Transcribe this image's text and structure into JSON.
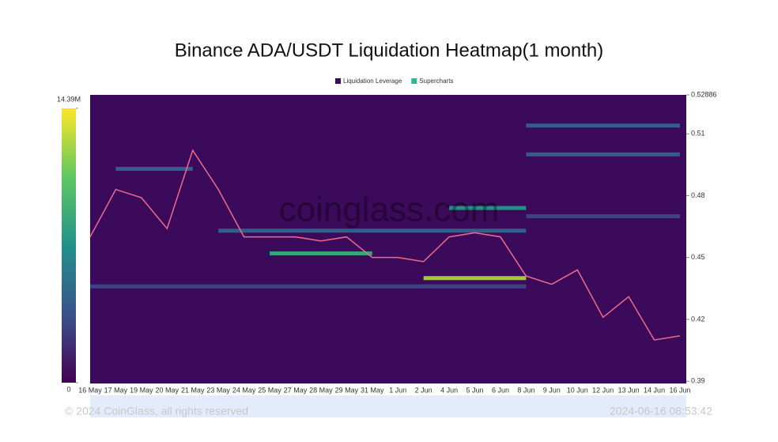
{
  "chart_data": {
    "type": "heatmap",
    "title": "Binance ADA/USDT Liquidation Heatmap(1 month)",
    "watermark": "coinglass.com",
    "footer": "© 2024 CoinGlass, all rights reserved",
    "timestamp": "2024-06-16 08:53:42",
    "categories": [
      "16 May",
      "17 May",
      "19 May",
      "20 May",
      "21 May",
      "23 May",
      "24 May",
      "25 May",
      "27 May",
      "28 May",
      "29 May",
      "31 May",
      "1 Jun",
      "2 Jun",
      "4 Jun",
      "5 Jun",
      "6 Jun",
      "8 Jun",
      "9 Jun",
      "10 Jun",
      "12 Jun",
      "13 Jun",
      "14 Jun",
      "16 Jun"
    ],
    "ylim": [
      0.3889,
      0.52886
    ],
    "yticks": [
      0.39,
      0.42,
      0.45,
      0.48,
      0.51,
      0.52886
    ],
    "colorbar_lim": [
      0,
      14390000
    ],
    "colorbar_ticks": [
      0,
      {
        "value": 14390000,
        "label": "14.39M"
      }
    ],
    "background_color": "#3b0a5a",
    "legend": [
      {
        "name": "Liquidation Leverage",
        "color": "#3b0a5a"
      },
      {
        "name": "Supercharts",
        "color": "#21c08b"
      }
    ],
    "series": [
      {
        "name": "Supercharts",
        "color": "#f06a8a",
        "values": [
          0.46,
          0.483,
          0.479,
          0.464,
          0.502,
          0.483,
          0.46,
          0.46,
          0.46,
          0.458,
          0.46,
          0.45,
          0.45,
          0.448,
          0.46,
          0.462,
          0.46,
          0.441,
          0.437,
          0.444,
          0.421,
          0.431,
          0.41,
          0.412
        ]
      }
    ],
    "bands": [
      {
        "price": 0.44,
        "from": "2 Jun",
        "to": "8 Jun",
        "value": 12000000
      },
      {
        "price": 0.452,
        "from": "25 May",
        "to": "31 May",
        "value": 9000000
      },
      {
        "price": 0.474,
        "from": "4 Jun",
        "to": "8 Jun",
        "value": 8000000
      },
      {
        "price": 0.463,
        "from": "23 May",
        "to": "8 Jun",
        "value": 5000000
      },
      {
        "price": 0.493,
        "from": "17 May",
        "to": "21 May",
        "value": 5000000
      },
      {
        "price": 0.514,
        "from": "8 Jun",
        "to": "16 Jun",
        "value": 4000000
      },
      {
        "price": 0.5,
        "from": "8 Jun",
        "to": "16 Jun",
        "value": 4000000
      },
      {
        "price": 0.436,
        "from": "16 May",
        "to": "8 Jun",
        "value": 3000000
      },
      {
        "price": 0.47,
        "from": "8 Jun",
        "to": "16 Jun",
        "value": 2500000
      }
    ]
  }
}
